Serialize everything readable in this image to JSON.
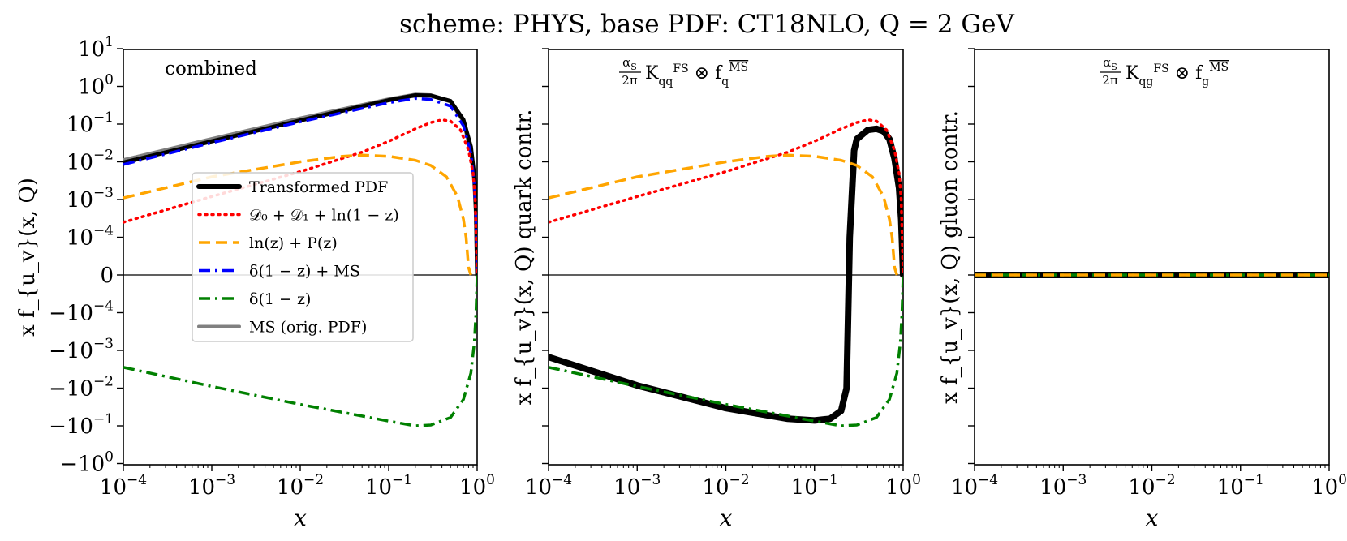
{
  "chart_data": {
    "figure_title": "scheme: PHYS, base PDF: CT18NLO, Q = 2 GeV",
    "type": "line",
    "x_scale": "log",
    "y_scale": "symlog",
    "xlim": [
      0.0001,
      1
    ],
    "ylim": [
      -1,
      10
    ],
    "linthresh": 0.0001,
    "x_tick_labels": [
      {
        "base": "10",
        "exp": "−4"
      },
      {
        "base": "10",
        "exp": "−3"
      },
      {
        "base": "10",
        "exp": "−2"
      },
      {
        "base": "10",
        "exp": "−1"
      },
      {
        "base": "10",
        "exp": "0"
      }
    ],
    "y_tick_labels": [
      {
        "value": 10,
        "base": "10",
        "exp": "1"
      },
      {
        "value": 1,
        "base": "10",
        "exp": "0"
      },
      {
        "value": 0.1,
        "base": "10",
        "exp": "−1"
      },
      {
        "value": 0.01,
        "base": "10",
        "exp": "−2"
      },
      {
        "value": 0.001,
        "base": "10",
        "exp": "−3"
      },
      {
        "value": 0.0001,
        "base": "10",
        "exp": "−4"
      },
      {
        "value": 0,
        "base": "0",
        "exp": ""
      },
      {
        "value": -0.0001,
        "base": "−10",
        "exp": "−4"
      },
      {
        "value": -0.001,
        "base": "−10",
        "exp": "−3"
      },
      {
        "value": -0.01,
        "base": "−10",
        "exp": "−2"
      },
      {
        "value": -0.1,
        "base": "−10",
        "exp": "−1"
      },
      {
        "value": -1,
        "base": "−10",
        "exp": "0"
      }
    ],
    "xlabel": "x",
    "legend": {
      "location": "center-left",
      "entries": [
        {
          "label": "Transformed PDF",
          "color": "#000000",
          "style": "solid"
        },
        {
          "label": "𝒟₀ + 𝒟₁ + ln(1 − z)",
          "color": "#ff0000",
          "style": "dotted"
        },
        {
          "label": "ln(z) + P(z)",
          "color": "#ffa500",
          "style": "dashed"
        },
        {
          "label": "δ(1 − z) + MS",
          "color": "#0000ff",
          "style": "dashdot"
        },
        {
          "label": "δ(1 − z)",
          "color": "#008000",
          "style": "dashdot"
        },
        {
          "label": "MS (orig. PDF)",
          "color": "#808080",
          "style": "solid"
        }
      ]
    },
    "panels": [
      {
        "title": "combined",
        "ylabel": "x f_{u_v}(x, Q)",
        "series": [
          {
            "name": "MS (orig. PDF)",
            "color": "#808080",
            "style": "solid",
            "x": [
              0.0001,
              0.001,
              0.01,
              0.1,
              0.2,
              0.3,
              0.5,
              0.7,
              0.85,
              0.93,
              0.97,
              1.0
            ],
            "y": [
              0.011,
              0.04,
              0.14,
              0.45,
              0.6,
              0.58,
              0.4,
              0.12,
              0.02,
              0.003,
              0.0004,
              0
            ]
          },
          {
            "name": "Transformed PDF",
            "color": "#000000",
            "style": "solid",
            "x": [
              0.0001,
              0.001,
              0.01,
              0.1,
              0.2,
              0.3,
              0.5,
              0.7,
              0.85,
              0.93,
              0.97,
              1.0
            ],
            "y": [
              0.0095,
              0.035,
              0.125,
              0.43,
              0.58,
              0.57,
              0.41,
              0.13,
              0.025,
              0.004,
              0.0005,
              0
            ]
          },
          {
            "name": "δ(1 − z) + MS",
            "color": "#0000ff",
            "style": "dashdot",
            "x": [
              0.0001,
              0.001,
              0.01,
              0.1,
              0.2,
              0.3,
              0.5,
              0.7,
              0.85,
              0.93,
              0.97,
              1.0
            ],
            "y": [
              0.0085,
              0.032,
              0.115,
              0.37,
              0.48,
              0.45,
              0.3,
              0.09,
              0.017,
              0.0025,
              0.0003,
              0
            ]
          },
          {
            "name": "𝒟₀ + 𝒟₁ + ln(1 − z)",
            "color": "#ff0000",
            "style": "dotted",
            "x": [
              0.0001,
              0.001,
              0.01,
              0.05,
              0.1,
              0.2,
              0.3,
              0.4,
              0.5,
              0.65,
              0.8,
              0.9,
              0.95,
              1.0
            ],
            "y": [
              0.00025,
              0.0012,
              0.0055,
              0.018,
              0.035,
              0.075,
              0.11,
              0.13,
              0.12,
              0.07,
              0.02,
              0.005,
              0.001,
              0
            ]
          },
          {
            "name": "ln(z) + P(z)",
            "color": "#ffa500",
            "style": "dashed",
            "x": [
              0.0001,
              0.001,
              0.01,
              0.03,
              0.05,
              0.1,
              0.2,
              0.3,
              0.45,
              0.6,
              0.7,
              0.75,
              0.8,
              0.85
            ],
            "y": [
              0.0011,
              0.004,
              0.01,
              0.014,
              0.015,
              0.014,
              0.011,
              0.008,
              0.004,
              0.0012,
              0.0003,
              0.0001,
              2e-05,
              0
            ]
          },
          {
            "name": "δ(1 − z)",
            "color": "#008000",
            "style": "dashdot",
            "x": [
              0.0001,
              0.001,
              0.01,
              0.05,
              0.1,
              0.2,
              0.3,
              0.5,
              0.7,
              0.85,
              0.93,
              0.97,
              1.0
            ],
            "y": [
              -0.0028,
              -0.009,
              -0.027,
              -0.055,
              -0.075,
              -0.1,
              -0.095,
              -0.06,
              -0.02,
              -0.004,
              -0.0006,
              -0.0001,
              0
            ]
          }
        ]
      },
      {
        "title": "αS/2π K_qq^FS ⊗ f_q^MS",
        "ylabel": "x f_{u_v}(x, Q) quark contr.",
        "series": [
          {
            "name": "Transformed PDF",
            "color": "#000000",
            "style": "solid",
            "x": [
              0.0001,
              0.001,
              0.01,
              0.05,
              0.1,
              0.15,
              0.2,
              0.23,
              0.25,
              0.28,
              0.3,
              0.4,
              0.5,
              0.6,
              0.7,
              0.8,
              0.9,
              0.95,
              1.0
            ],
            "y": [
              -0.0015,
              -0.0085,
              -0.034,
              -0.065,
              -0.072,
              -0.065,
              -0.04,
              -0.01,
              0.0001,
              0.02,
              0.04,
              0.07,
              0.075,
              0.065,
              0.04,
              0.012,
              0.002,
              0.0003,
              0
            ]
          },
          {
            "name": "𝒟₀ + 𝒟₁ + ln(1 − z)",
            "color": "#ff0000",
            "style": "dotted",
            "x": [
              0.0001,
              0.001,
              0.01,
              0.05,
              0.1,
              0.2,
              0.3,
              0.4,
              0.5,
              0.65,
              0.8,
              0.9,
              0.95,
              1.0
            ],
            "y": [
              0.00025,
              0.0012,
              0.0055,
              0.018,
              0.035,
              0.075,
              0.11,
              0.13,
              0.12,
              0.07,
              0.02,
              0.005,
              0.001,
              0
            ]
          },
          {
            "name": "ln(z) + P(z)",
            "color": "#ffa500",
            "style": "dashed",
            "x": [
              0.0001,
              0.001,
              0.01,
              0.03,
              0.05,
              0.1,
              0.2,
              0.3,
              0.45,
              0.6,
              0.7,
              0.75,
              0.8,
              0.85
            ],
            "y": [
              0.0011,
              0.004,
              0.01,
              0.014,
              0.015,
              0.014,
              0.011,
              0.008,
              0.004,
              0.0012,
              0.0003,
              0.0001,
              2e-05,
              0
            ]
          },
          {
            "name": "δ(1 − z)",
            "color": "#008000",
            "style": "dashdot",
            "x": [
              0.0001,
              0.001,
              0.01,
              0.05,
              0.1,
              0.2,
              0.3,
              0.5,
              0.7,
              0.85,
              0.93,
              0.97,
              1.0
            ],
            "y": [
              -0.0028,
              -0.009,
              -0.027,
              -0.055,
              -0.075,
              -0.1,
              -0.095,
              -0.06,
              -0.02,
              -0.004,
              -0.0006,
              -0.0001,
              0
            ]
          }
        ]
      },
      {
        "title": "αS/2π K_qg^FS ⊗ f_g^MS",
        "ylabel": "x f_{u_v}(x, Q) gluon contr.",
        "series": [
          {
            "name": "Transformed PDF",
            "color": "#000000",
            "style": "solid",
            "x": [
              0.0001,
              1.0
            ],
            "y": [
              0,
              0
            ]
          },
          {
            "name": "δ(1 − z)",
            "color": "#008000",
            "style": "dashdot",
            "x": [
              0.0001,
              1.0
            ],
            "y": [
              0,
              0
            ]
          },
          {
            "name": "ln(z) + P(z)",
            "color": "#ffa500",
            "style": "dashed",
            "x": [
              0.0001,
              1.0
            ],
            "y": [
              0,
              0
            ]
          }
        ]
      }
    ]
  }
}
